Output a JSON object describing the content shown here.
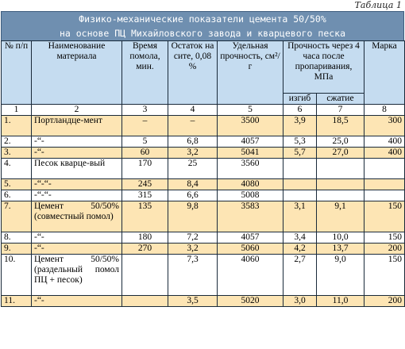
{
  "caption": "Таблица 1",
  "title": {
    "line1": "Физико-механические показатели цемента 50/50%",
    "line2": "на основе ПЦ Михайловского завода и кварцевого песка"
  },
  "headers": {
    "num": "№ п/п",
    "name": "Наименование материала",
    "time": "Время помола, мин.",
    "residue": "Остаток на сите, 0,08 %",
    "surface": "Удельная прочность, см²/г",
    "strength": "Прочность через 4 часа после пропаривания, МПа",
    "bend": "изгиб",
    "compress": "сжатие",
    "grade": "Марка"
  },
  "colnums": [
    "1",
    "2",
    "3",
    "4",
    "5",
    "6",
    "7",
    "8"
  ],
  "rows": [
    {
      "num": "1.",
      "name": "Портландце-мент",
      "time": "–",
      "residue": "–",
      "surface": "3500",
      "bend": "3,9",
      "compress": "18,5",
      "grade": "300"
    },
    {
      "num": "2.",
      "name": "-“-",
      "time": "5",
      "residue": "6,8",
      "surface": "4057",
      "bend": "5,3",
      "compress": "25,0",
      "grade": "400"
    },
    {
      "num": "3.",
      "name": "-“-",
      "time": "60",
      "residue": "3,2",
      "surface": "5041",
      "bend": "5,7",
      "compress": "27,0",
      "grade": "400"
    },
    {
      "num": "4.",
      "name": "Песок кварце-вый",
      "time": "170",
      "residue": "25",
      "surface": "3560",
      "bend": "",
      "compress": "",
      "grade": ""
    },
    {
      "num": "5.",
      "name": "-“-“-",
      "time": "245",
      "residue": "8,4",
      "surface": "4080",
      "bend": "",
      "compress": "",
      "grade": ""
    },
    {
      "num": "6.",
      "name": "-“-“-",
      "time": "315",
      "residue": "6,6",
      "surface": "5008",
      "bend": "",
      "compress": "",
      "grade": ""
    },
    {
      "num": "7.",
      "name": "Цемент 50/50% (совместный помол)",
      "time": "135",
      "residue": "9,8",
      "surface": "3583",
      "bend": "3,1",
      "compress": "9,1",
      "grade": "150"
    },
    {
      "num": "8.",
      "name": "-“-",
      "time": "180",
      "residue": "7,2",
      "surface": "4057",
      "bend": "3,4",
      "compress": "10,0",
      "grade": "150"
    },
    {
      "num": "9.",
      "name": "-“-",
      "time": "270",
      "residue": "3,2",
      "surface": "5060",
      "bend": "4,2",
      "compress": "13,7",
      "grade": "200"
    },
    {
      "num": "10.",
      "name": "Цемент 50/50% (раздельный помол ПЦ + песок)",
      "time": "",
      "residue": "7,3",
      "surface": "4060",
      "bend": "2,7",
      "compress": "9,0",
      "grade": "150"
    },
    {
      "num": "11.",
      "name": "-“-",
      "time": "",
      "residue": "3,5",
      "surface": "5020",
      "bend": "3,0",
      "compress": "11,0",
      "grade": "200"
    }
  ]
}
